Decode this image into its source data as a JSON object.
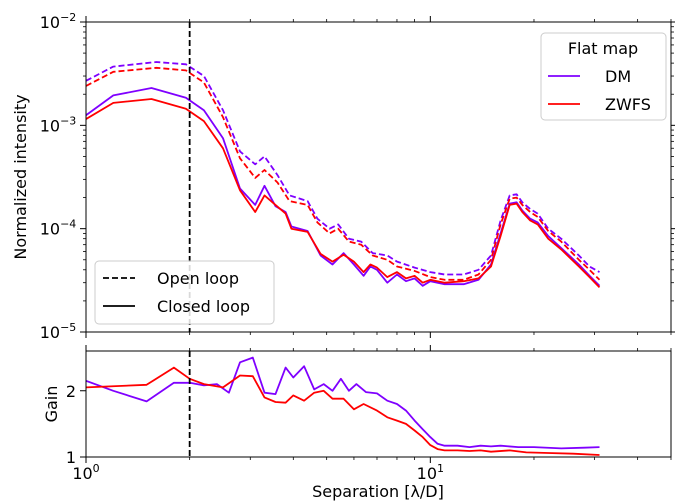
{
  "chart_data": [
    {
      "type": "line",
      "xscale": "log",
      "yscale": "log",
      "xlim": [
        1,
        50
      ],
      "ylim": [
        1e-05,
        0.01
      ],
      "ylabel": "Normalized intensity",
      "y_ticks": [
        {
          "value": 1e-05,
          "base": "10",
          "exp": "−5"
        },
        {
          "value": 0.0001,
          "base": "10",
          "exp": "−4"
        },
        {
          "value": 0.001,
          "base": "10",
          "exp": "−3"
        },
        {
          "value": 0.01,
          "base": "10",
          "exp": "−2"
        }
      ],
      "vline_x": 2,
      "legend_color": {
        "title": "Flat map",
        "placement": "top-right",
        "entries": [
          {
            "label": "DM",
            "color": "#7f00ff"
          },
          {
            "label": "ZWFS",
            "color": "#ff0000"
          }
        ]
      },
      "legend_style": {
        "placement": "bottom-left",
        "entries": [
          {
            "label": "Open loop",
            "dash": "dashed"
          },
          {
            "label": "Closed loop",
            "dash": "solid"
          }
        ]
      },
      "series": [
        {
          "key": "dm_open",
          "color": "#7f00ff",
          "dash": "dashed",
          "points": [
            [
              1.0,
              0.0027
            ],
            [
              1.2,
              0.0037
            ],
            [
              1.6,
              0.0041
            ],
            [
              1.95,
              0.0039
            ],
            [
              2.2,
              0.003
            ],
            [
              2.5,
              0.0014
            ],
            [
              2.8,
              0.00056
            ],
            [
              3.1,
              0.00042
            ],
            [
              3.3,
              0.0005
            ],
            [
              3.6,
              0.00033
            ],
            [
              3.9,
              0.00021
            ],
            [
              4.4,
              0.000185
            ],
            [
              4.7,
              0.000125
            ],
            [
              5.1,
              0.0001
            ],
            [
              5.4,
              0.00011
            ],
            [
              5.8,
              8e-05
            ],
            [
              6.3,
              7.5e-05
            ],
            [
              6.8,
              5.8e-05
            ],
            [
              7.5,
              5.5e-05
            ],
            [
              8.0,
              4.8e-05
            ],
            [
              9.0,
              4.2e-05
            ],
            [
              10.0,
              3.8e-05
            ],
            [
              11.0,
              3.6e-05
            ],
            [
              12.5,
              3.6e-05
            ],
            [
              13.8,
              4e-05
            ],
            [
              15.0,
              5.5e-05
            ],
            [
              16.0,
              0.00012
            ],
            [
              17.0,
              0.00021
            ],
            [
              17.8,
              0.000215
            ],
            [
              18.5,
              0.00018
            ],
            [
              19.5,
              0.000155
            ],
            [
              20.5,
              0.00014
            ],
            [
              22.0,
              0.0001
            ],
            [
              24.0,
              8e-05
            ],
            [
              27.0,
              5.5e-05
            ],
            [
              29.0,
              4.3e-05
            ],
            [
              31.0,
              3.8e-05
            ]
          ]
        },
        {
          "key": "zwfs_open",
          "color": "#ff0000",
          "dash": "dashed",
          "points": [
            [
              1.0,
              0.0024
            ],
            [
              1.2,
              0.0033
            ],
            [
              1.6,
              0.0036
            ],
            [
              1.95,
              0.0034
            ],
            [
              2.2,
              0.0026
            ],
            [
              2.5,
              0.0012
            ],
            [
              2.8,
              0.00048
            ],
            [
              3.1,
              0.00031
            ],
            [
              3.3,
              0.00037
            ],
            [
              3.6,
              0.00028
            ],
            [
              3.9,
              0.000185
            ],
            [
              4.4,
              0.00017
            ],
            [
              4.7,
              0.000115
            ],
            [
              5.1,
              9e-05
            ],
            [
              5.4,
              0.0001
            ],
            [
              5.8,
              7.5e-05
            ],
            [
              6.3,
              7e-05
            ],
            [
              6.8,
              5.5e-05
            ],
            [
              7.5,
              5e-05
            ],
            [
              8.0,
              4.3e-05
            ],
            [
              9.0,
              3.9e-05
            ],
            [
              10.0,
              3.4e-05
            ],
            [
              11.0,
              3.2e-05
            ],
            [
              12.5,
              3.2e-05
            ],
            [
              13.8,
              3.6e-05
            ],
            [
              15.0,
              5e-05
            ],
            [
              16.0,
              0.00011
            ],
            [
              17.0,
              0.000195
            ],
            [
              17.8,
              0.0002
            ],
            [
              18.5,
              0.00017
            ],
            [
              19.5,
              0.000145
            ],
            [
              20.5,
              0.00013
            ],
            [
              22.0,
              9.5e-05
            ],
            [
              24.0,
              7.5e-05
            ],
            [
              27.0,
              5e-05
            ],
            [
              29.0,
              4e-05
            ],
            [
              31.0,
              3.2e-05
            ]
          ]
        },
        {
          "key": "dm_closed",
          "color": "#7f00ff",
          "dash": "solid",
          "points": [
            [
              1.0,
              0.00125
            ],
            [
              1.2,
              0.00195
            ],
            [
              1.55,
              0.0023
            ],
            [
              1.95,
              0.00185
            ],
            [
              2.2,
              0.0014
            ],
            [
              2.5,
              0.00075
            ],
            [
              2.8,
              0.000245
            ],
            [
              3.1,
              0.00017
            ],
            [
              3.3,
              0.00026
            ],
            [
              3.55,
              0.000165
            ],
            [
              3.8,
              0.000145
            ],
            [
              3.95,
              0.000105
            ],
            [
              4.4,
              9.5e-05
            ],
            [
              4.8,
              5.5e-05
            ],
            [
              5.2,
              4.5e-05
            ],
            [
              5.6,
              5.8e-05
            ],
            [
              6.0,
              4.5e-05
            ],
            [
              6.4,
              3.5e-05
            ],
            [
              6.7,
              4.3e-05
            ],
            [
              7.0,
              4e-05
            ],
            [
              7.5,
              3e-05
            ],
            [
              8.0,
              3.6e-05
            ],
            [
              8.5,
              3.1e-05
            ],
            [
              9.0,
              3.3e-05
            ],
            [
              9.5,
              2.8e-05
            ],
            [
              10.0,
              3.1e-05
            ],
            [
              11.0,
              2.9e-05
            ],
            [
              12.5,
              2.9e-05
            ],
            [
              13.8,
              3.2e-05
            ],
            [
              15.0,
              4.5e-05
            ],
            [
              16.0,
              9e-05
            ],
            [
              17.0,
              0.000175
            ],
            [
              17.8,
              0.00018
            ],
            [
              18.5,
              0.00015
            ],
            [
              19.5,
              0.000125
            ],
            [
              20.5,
              0.000115
            ],
            [
              22.0,
              8.5e-05
            ],
            [
              24.0,
              6.5e-05
            ],
            [
              27.0,
              4.5e-05
            ],
            [
              29.0,
              3.5e-05
            ],
            [
              31.0,
              2.8e-05
            ]
          ]
        },
        {
          "key": "zwfs_closed",
          "color": "#ff0000",
          "dash": "solid",
          "points": [
            [
              1.0,
              0.00115
            ],
            [
              1.2,
              0.00165
            ],
            [
              1.55,
              0.0018
            ],
            [
              1.95,
              0.00145
            ],
            [
              2.2,
              0.0011
            ],
            [
              2.5,
              0.0006
            ],
            [
              2.8,
              0.000235
            ],
            [
              3.1,
              0.000145
            ],
            [
              3.3,
              0.00021
            ],
            [
              3.55,
              0.00017
            ],
            [
              3.8,
              0.00014
            ],
            [
              3.95,
              0.0001
            ],
            [
              4.4,
              9.3e-05
            ],
            [
              4.8,
              5.7e-05
            ],
            [
              5.2,
              4.8e-05
            ],
            [
              5.6,
              5.6e-05
            ],
            [
              6.0,
              4.8e-05
            ],
            [
              6.4,
              3.8e-05
            ],
            [
              6.7,
              4.5e-05
            ],
            [
              7.0,
              4.2e-05
            ],
            [
              7.5,
              3.4e-05
            ],
            [
              8.0,
              3.8e-05
            ],
            [
              8.5,
              3.3e-05
            ],
            [
              9.0,
              3.5e-05
            ],
            [
              9.5,
              3e-05
            ],
            [
              10.0,
              3.2e-05
            ],
            [
              11.0,
              3e-05
            ],
            [
              12.5,
              3.1e-05
            ],
            [
              13.8,
              3.3e-05
            ],
            [
              15.0,
              4.3e-05
            ],
            [
              16.0,
              8.5e-05
            ],
            [
              17.0,
              0.00017
            ],
            [
              17.8,
              0.000175
            ],
            [
              18.5,
              0.000145
            ],
            [
              19.5,
              0.00012
            ],
            [
              20.5,
              0.00011
            ],
            [
              22.0,
              8e-05
            ],
            [
              24.0,
              6.3e-05
            ],
            [
              27.0,
              4.3e-05
            ],
            [
              29.0,
              3.4e-05
            ],
            [
              31.0,
              2.7e-05
            ]
          ]
        }
      ]
    },
    {
      "type": "line",
      "xscale": "log",
      "xlim": [
        1,
        50
      ],
      "ylim": [
        1,
        2.6
      ],
      "xlabel": "Separation [λ/D]",
      "ylabel": "Gain",
      "y_ticks": [
        1,
        2
      ],
      "x_ticks": [
        {
          "value": 1,
          "base": "10",
          "exp": "0"
        },
        {
          "value": 10,
          "base": "10",
          "exp": "1"
        }
      ],
      "vline_x": 2,
      "series": [
        {
          "key": "dm_gain",
          "color": "#7f00ff",
          "dash": "solid",
          "points": [
            [
              1.0,
              2.15
            ],
            [
              1.2,
              2.0
            ],
            [
              1.5,
              1.84
            ],
            [
              1.8,
              2.12
            ],
            [
              2.0,
              2.12
            ],
            [
              2.2,
              2.08
            ],
            [
              2.4,
              2.1
            ],
            [
              2.6,
              1.97
            ],
            [
              2.8,
              2.43
            ],
            [
              3.05,
              2.5
            ],
            [
              3.3,
              1.97
            ],
            [
              3.55,
              1.95
            ],
            [
              3.8,
              2.35
            ],
            [
              4.0,
              2.2
            ],
            [
              4.3,
              2.37
            ],
            [
              4.6,
              2.02
            ],
            [
              4.9,
              2.1
            ],
            [
              5.2,
              2.0
            ],
            [
              5.5,
              2.18
            ],
            [
              5.8,
              2.0
            ],
            [
              6.1,
              2.1
            ],
            [
              6.5,
              1.98
            ],
            [
              7.0,
              1.96
            ],
            [
              7.5,
              1.85
            ],
            [
              8.0,
              1.8
            ],
            [
              8.5,
              1.7
            ],
            [
              9.0,
              1.55
            ],
            [
              9.5,
              1.42
            ],
            [
              10.0,
              1.3
            ],
            [
              10.5,
              1.2
            ],
            [
              11.0,
              1.17
            ],
            [
              12.0,
              1.17
            ],
            [
              13.0,
              1.15
            ],
            [
              14.0,
              1.17
            ],
            [
              15.0,
              1.16
            ],
            [
              16.0,
              1.17
            ],
            [
              18.0,
              1.15
            ],
            [
              20.0,
              1.15
            ],
            [
              24.0,
              1.13
            ],
            [
              28.0,
              1.14
            ],
            [
              31.0,
              1.15
            ]
          ]
        },
        {
          "key": "zwfs_gain",
          "color": "#ff0000",
          "dash": "solid",
          "points": [
            [
              1.0,
              2.05
            ],
            [
              1.5,
              2.09
            ],
            [
              1.8,
              2.35
            ],
            [
              2.0,
              2.18
            ],
            [
              2.2,
              2.1
            ],
            [
              2.5,
              2.05
            ],
            [
              2.8,
              2.23
            ],
            [
              3.05,
              2.22
            ],
            [
              3.3,
              1.9
            ],
            [
              3.55,
              1.83
            ],
            [
              3.8,
              1.82
            ],
            [
              4.0,
              1.93
            ],
            [
              4.3,
              1.85
            ],
            [
              4.6,
              1.97
            ],
            [
              4.9,
              2.0
            ],
            [
              5.2,
              1.88
            ],
            [
              5.6,
              1.88
            ],
            [
              6.0,
              1.72
            ],
            [
              6.4,
              1.8
            ],
            [
              7.0,
              1.7
            ],
            [
              7.5,
              1.6
            ],
            [
              8.0,
              1.55
            ],
            [
              8.5,
              1.5
            ],
            [
              9.0,
              1.4
            ],
            [
              9.5,
              1.3
            ],
            [
              10.0,
              1.18
            ],
            [
              10.5,
              1.12
            ],
            [
              11.0,
              1.1
            ],
            [
              12.0,
              1.1
            ],
            [
              13.0,
              1.09
            ],
            [
              14.0,
              1.1
            ],
            [
              15.0,
              1.08
            ],
            [
              17.0,
              1.1
            ],
            [
              19.0,
              1.07
            ],
            [
              22.0,
              1.06
            ],
            [
              26.0,
              1.05
            ],
            [
              31.0,
              1.03
            ]
          ]
        }
      ]
    }
  ]
}
